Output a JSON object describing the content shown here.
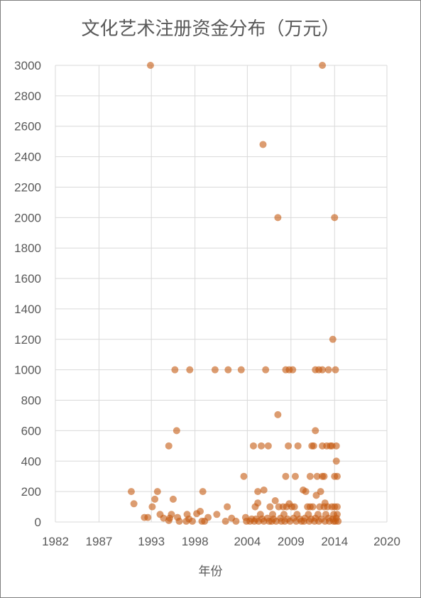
{
  "chart_data": {
    "type": "scatter",
    "title": "文化艺术注册资金分布（万元）",
    "xlabel": "年份",
    "ylabel": "",
    "xlim": [
      1982,
      2020
    ],
    "ylim": [
      0,
      3000
    ],
    "x_ticks": [
      "1982",
      "1987",
      "1993",
      "1998",
      "2004",
      "2009",
      "2014",
      "2020"
    ],
    "y_ticks": [
      "0",
      "200",
      "400",
      "600",
      "800",
      "1000",
      "1200",
      "1400",
      "1600",
      "1800",
      "2000",
      "2200",
      "2400",
      "2600",
      "2800",
      "3000"
    ],
    "grid": true,
    "legend": "none",
    "point_color": "#C55A11",
    "series": [
      {
        "points": [
          [
            1992.9,
            3000
          ],
          [
            2012.6,
            3000
          ],
          [
            2005.8,
            2480
          ],
          [
            2007.5,
            2000
          ],
          [
            2014.0,
            2000
          ],
          [
            2013.8,
            1200
          ],
          [
            1995.7,
            1000
          ],
          [
            1997.4,
            1000
          ],
          [
            2000.3,
            1000
          ],
          [
            2001.8,
            1000
          ],
          [
            2003.3,
            1000
          ],
          [
            2006.1,
            1000
          ],
          [
            2008.4,
            1000
          ],
          [
            2008.8,
            1000
          ],
          [
            2009.2,
            1000
          ],
          [
            2011.8,
            1000
          ],
          [
            2012.2,
            1000
          ],
          [
            2012.6,
            1000
          ],
          [
            2013.3,
            1000
          ],
          [
            2014.1,
            1000
          ],
          [
            2007.5,
            705
          ],
          [
            1995.9,
            600
          ],
          [
            2011.8,
            600
          ],
          [
            1995.0,
            500
          ],
          [
            2004.7,
            500
          ],
          [
            2005.6,
            500
          ],
          [
            2006.4,
            500
          ],
          [
            2008.7,
            500
          ],
          [
            2009.8,
            500
          ],
          [
            2011.4,
            500
          ],
          [
            2011.6,
            500
          ],
          [
            2012.6,
            500
          ],
          [
            2013.1,
            500
          ],
          [
            2013.5,
            500
          ],
          [
            2013.7,
            500
          ],
          [
            2014.2,
            500
          ],
          [
            2014.2,
            400
          ],
          [
            2003.6,
            300
          ],
          [
            2008.4,
            300
          ],
          [
            2009.5,
            300
          ],
          [
            2011.2,
            300
          ],
          [
            2012.0,
            300
          ],
          [
            2012.6,
            300
          ],
          [
            2012.8,
            300
          ],
          [
            2014.0,
            300
          ],
          [
            2014.3,
            300
          ],
          [
            2010.4,
            210
          ],
          [
            2010.7,
            200
          ],
          [
            1990.7,
            200
          ],
          [
            1993.7,
            200
          ],
          [
            1998.9,
            200
          ],
          [
            2005.2,
            200
          ],
          [
            2005.9,
            210
          ],
          [
            2012.4,
            200
          ],
          [
            2011.9,
            175
          ],
          [
            1995.5,
            150
          ],
          [
            1993.4,
            150
          ],
          [
            2005.2,
            125
          ],
          [
            2007.2,
            140
          ],
          [
            2008.8,
            120
          ],
          [
            1991.0,
            120
          ],
          [
            2012.9,
            125
          ],
          [
            1993.1,
            100
          ],
          [
            2001.7,
            100
          ],
          [
            2004.9,
            100
          ],
          [
            2006.6,
            100
          ],
          [
            2007.6,
            100
          ],
          [
            2008.1,
            100
          ],
          [
            2008.5,
            100
          ],
          [
            2009.1,
            100
          ],
          [
            2009.4,
            100
          ],
          [
            2010.9,
            100
          ],
          [
            2011.2,
            100
          ],
          [
            2011.5,
            100
          ],
          [
            2012.3,
            100
          ],
          [
            2012.8,
            100
          ],
          [
            2013.2,
            100
          ],
          [
            2013.7,
            100
          ],
          [
            2014.0,
            100
          ],
          [
            2014.3,
            100
          ],
          [
            1998.6,
            70
          ],
          [
            1998.2,
            55
          ],
          [
            1997.1,
            50
          ],
          [
            1994.0,
            50
          ],
          [
            1995.3,
            50
          ],
          [
            2000.5,
            50
          ],
          [
            2005.5,
            50
          ],
          [
            2006.9,
            50
          ],
          [
            2008.2,
            50
          ],
          [
            2009.7,
            50
          ],
          [
            2011.0,
            50
          ],
          [
            2012.1,
            50
          ],
          [
            2013.0,
            50
          ],
          [
            2013.9,
            50
          ],
          [
            2014.3,
            50
          ],
          [
            1992.2,
            30
          ],
          [
            1992.6,
            30
          ],
          [
            1994.4,
            25
          ],
          [
            1995.1,
            25
          ],
          [
            1996.0,
            30
          ],
          [
            1997.3,
            20
          ],
          [
            1999.5,
            30
          ],
          [
            2002.2,
            25
          ],
          [
            2003.8,
            30
          ],
          [
            2004.5,
            20
          ],
          [
            2005.0,
            20
          ],
          [
            2005.7,
            20
          ],
          [
            2006.3,
            25
          ],
          [
            2007.0,
            20
          ],
          [
            2007.8,
            25
          ],
          [
            2008.6,
            20
          ],
          [
            2009.3,
            25
          ],
          [
            2010.0,
            20
          ],
          [
            2010.6,
            25
          ],
          [
            2011.3,
            20
          ],
          [
            2011.8,
            25
          ],
          [
            2012.5,
            20
          ],
          [
            2013.3,
            25
          ],
          [
            2013.8,
            20
          ],
          [
            2014.2,
            25
          ],
          [
            1995.0,
            10
          ],
          [
            1996.2,
            5
          ],
          [
            1997.0,
            5
          ],
          [
            1997.7,
            5
          ],
          [
            1998.8,
            5
          ],
          [
            1999.1,
            5
          ],
          [
            2001.5,
            5
          ],
          [
            2002.7,
            5
          ],
          [
            2003.9,
            5
          ],
          [
            2004.3,
            5
          ],
          [
            2004.8,
            5
          ],
          [
            2005.3,
            5
          ],
          [
            2005.9,
            5
          ],
          [
            2006.5,
            5
          ],
          [
            2006.8,
            5
          ],
          [
            2007.3,
            5
          ],
          [
            2007.9,
            5
          ],
          [
            2008.3,
            5
          ],
          [
            2008.9,
            5
          ],
          [
            2009.6,
            5
          ],
          [
            2010.2,
            5
          ],
          [
            2010.5,
            5
          ],
          [
            2011.1,
            5
          ],
          [
            2011.7,
            5
          ],
          [
            2012.2,
            5
          ],
          [
            2012.9,
            5
          ],
          [
            2013.4,
            5
          ],
          [
            2013.9,
            5
          ],
          [
            2014.1,
            5
          ],
          [
            2014.4,
            5
          ]
        ]
      }
    ]
  }
}
